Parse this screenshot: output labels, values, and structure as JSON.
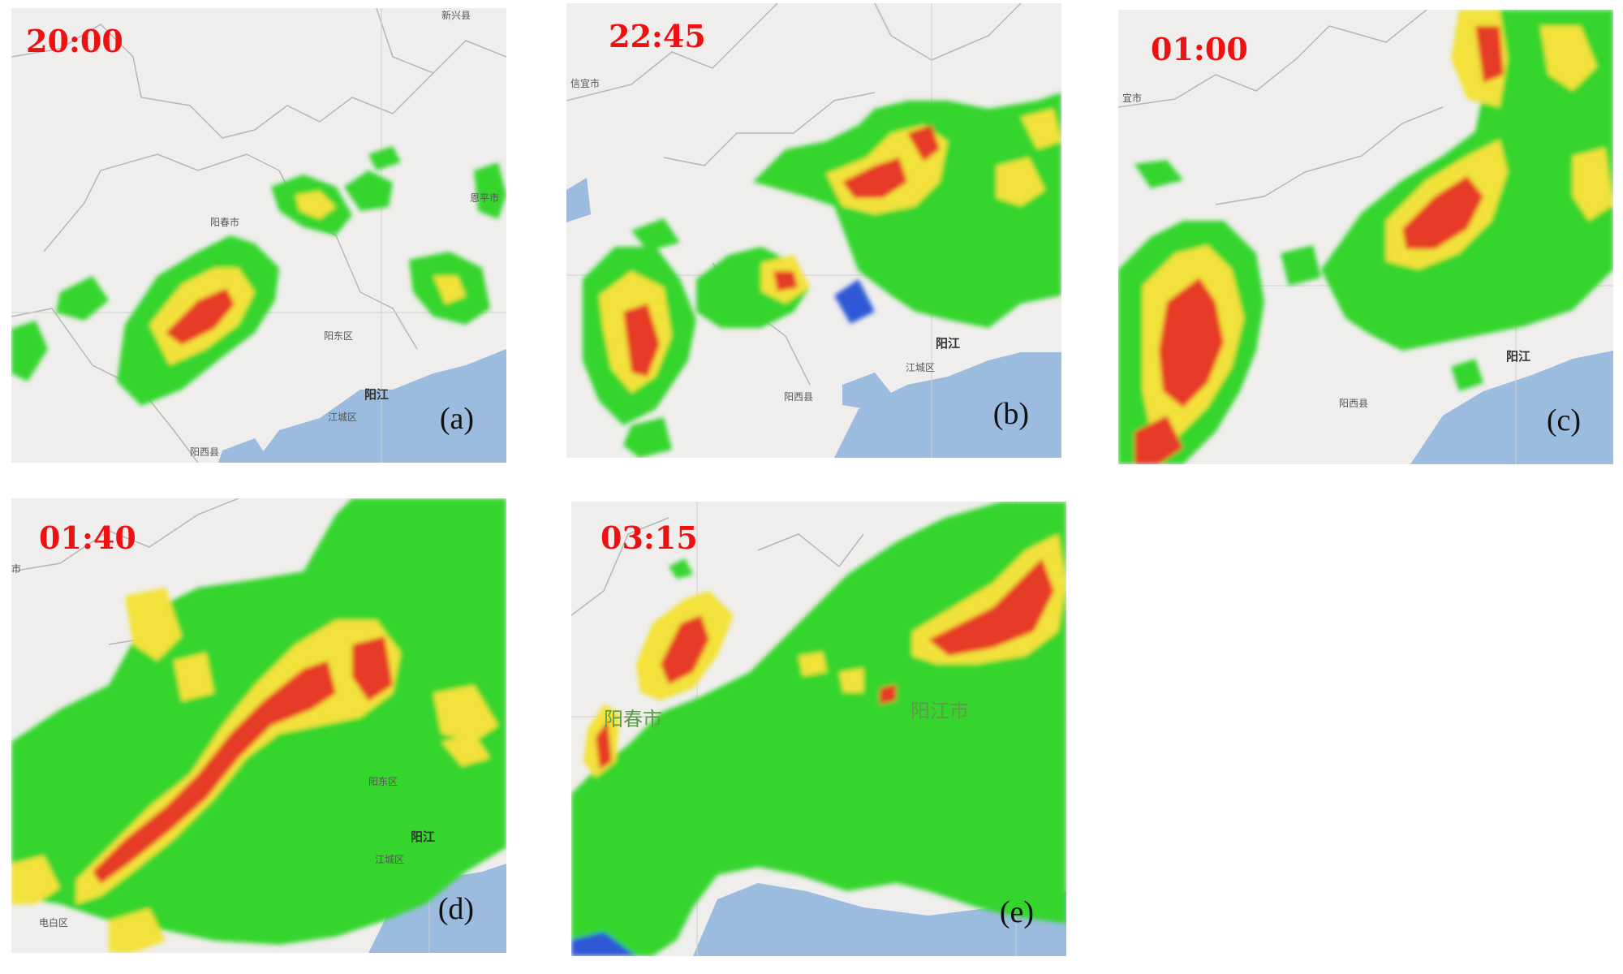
{
  "colors": {
    "map_land": "#efeeec",
    "map_sea": "#9bbcdf",
    "border": "#b6b6b6",
    "echo_blue": "#2f58d6",
    "echo_green": "#34d52e",
    "echo_lightgreen": "#6fea40",
    "echo_yellow": "#f2e23a",
    "echo_orange": "#f4a52a",
    "echo_red": "#e63a28",
    "time_label": "#ee1111"
  },
  "panels": [
    {
      "id": "a",
      "time": "20:00",
      "tag": "(a)",
      "places": [
        "新兴县",
        "阳春市",
        "阳东区",
        "阳江",
        "江城区",
        "阳西县",
        "恩平市"
      ]
    },
    {
      "id": "b",
      "time": "22:45",
      "tag": "(b)",
      "places": [
        "信宜市",
        "阳江",
        "江城区",
        "阳西县"
      ]
    },
    {
      "id": "c",
      "time": "01:00",
      "tag": "(c)",
      "places": [
        "宜市",
        "阳江",
        "阳西县"
      ]
    },
    {
      "id": "d",
      "time": "01:40",
      "tag": "(d)",
      "places": [
        "市",
        "阳东区",
        "阳江",
        "江城区",
        "电白区"
      ]
    },
    {
      "id": "e",
      "time": "03:15",
      "tag": "(e)",
      "places": [
        "阳春市",
        "阳江市"
      ]
    }
  ]
}
